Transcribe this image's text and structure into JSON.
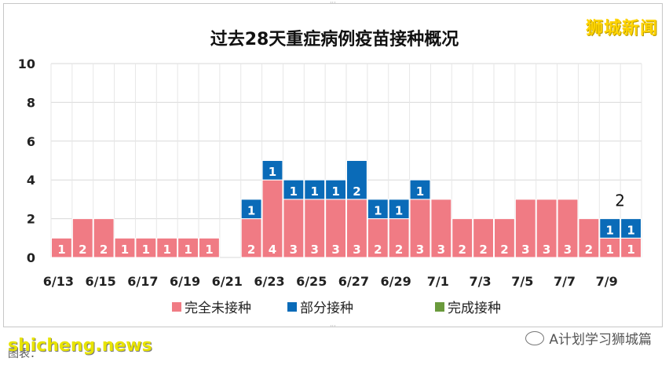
{
  "brand": "狮城新闻",
  "watermark_site": "shicheng.news",
  "watermark_account": "A计划学习狮城篇",
  "footer_source": "图表：",
  "chart_data": {
    "type": "bar",
    "stacked": true,
    "title": "过去28天重症病例疫苗接种概况",
    "categories": [
      "6/13",
      "6/14",
      "6/15",
      "6/16",
      "6/17",
      "6/18",
      "6/19",
      "6/20",
      "6/21",
      "6/22",
      "6/23",
      "6/24",
      "6/25",
      "6/26",
      "6/27",
      "6/28",
      "6/29",
      "6/30",
      "7/1",
      "7/2",
      "7/3",
      "7/4",
      "7/5",
      "7/6",
      "7/7",
      "7/8",
      "7/9",
      "7/10"
    ],
    "tick_labels": [
      "6/13",
      "6/15",
      "6/17",
      "6/19",
      "6/21",
      "6/23",
      "6/25",
      "6/27",
      "6/29",
      "7/1",
      "7/3",
      "7/5",
      "7/7",
      "7/9"
    ],
    "ylim": [
      0,
      10
    ],
    "yticks": [
      0,
      2,
      4,
      6,
      8,
      10
    ],
    "grid": true,
    "legend_position": "bottom",
    "series": [
      {
        "name": "完全未接种",
        "color": "#f07b84",
        "values": [
          1,
          2,
          2,
          1,
          1,
          1,
          1,
          1,
          0,
          2,
          4,
          3,
          3,
          3,
          3,
          2,
          2,
          3,
          3,
          2,
          2,
          2,
          3,
          3,
          3,
          2,
          1,
          1
        ]
      },
      {
        "name": "部分接种",
        "color": "#0a6bb8",
        "values": [
          0,
          0,
          0,
          0,
          0,
          0,
          0,
          0,
          0,
          1,
          1,
          1,
          1,
          1,
          2,
          1,
          1,
          1,
          0,
          0,
          0,
          0,
          0,
          0,
          0,
          0,
          1,
          1
        ]
      },
      {
        "name": "完成接种",
        "color": "#6a9a3c",
        "values": [
          0,
          0,
          0,
          0,
          0,
          0,
          0,
          0,
          0,
          0,
          0,
          0,
          0,
          0,
          0,
          0,
          0,
          0,
          0,
          0,
          0,
          0,
          0,
          0,
          0,
          0,
          0,
          0
        ]
      }
    ],
    "annotation": {
      "text": "2",
      "category": "7/10"
    }
  }
}
